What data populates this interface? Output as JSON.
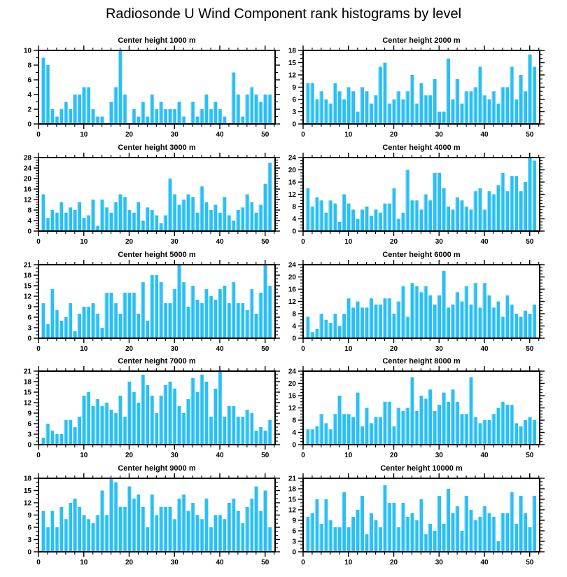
{
  "chart_data": {
    "type": "bar",
    "title": "Radiosonde U Wind Component rank histograms by level",
    "bar_color": "#2cbef4",
    "bar_edge_color": "#9ae4fb",
    "axis_color": "#000000",
    "bins": 51,
    "x_axis": {
      "ticks": [
        0,
        10,
        20,
        30,
        40,
        50
      ],
      "minor_step": 2,
      "range": [
        0,
        52.2
      ]
    },
    "panels": [
      {
        "title": "Center height 1000 m",
        "ylim": [
          0,
          10
        ],
        "ytick_step": 2,
        "values": [
          9,
          8,
          2,
          1,
          2,
          3,
          2,
          4,
          4,
          5,
          5,
          2,
          1,
          1,
          0,
          3,
          5,
          10,
          4,
          0,
          2,
          1,
          3,
          1,
          4,
          2,
          3,
          2,
          2,
          2,
          3,
          1,
          0,
          3,
          1,
          2,
          4,
          2,
          3,
          2,
          1,
          0,
          7,
          4,
          1,
          4,
          5,
          4,
          3,
          4,
          4
        ]
      },
      {
        "title": "Center height 2000 m",
        "ylim": [
          0,
          18
        ],
        "ytick_step": 3,
        "values": [
          10,
          10,
          6,
          8,
          6,
          5,
          10,
          8,
          6,
          9,
          8,
          3,
          9,
          8,
          5,
          7,
          14,
          15,
          5,
          6,
          8,
          6,
          8,
          12,
          5,
          10,
          7,
          7,
          11,
          3,
          3,
          16,
          6,
          11,
          5,
          8,
          8,
          9,
          14,
          7,
          6,
          8,
          5,
          9,
          9,
          14,
          6,
          12,
          8,
          17,
          14
        ]
      },
      {
        "title": "Center height 3000 m",
        "ylim": [
          0,
          28
        ],
        "ytick_step": 4,
        "values": [
          14,
          5,
          8,
          7,
          11,
          7,
          9,
          8,
          11,
          5,
          6,
          12,
          2,
          12,
          9,
          7,
          11,
          14,
          13,
          8,
          7,
          11,
          4,
          9,
          8,
          6,
          3,
          6,
          20,
          14,
          10,
          12,
          14,
          13,
          7,
          17,
          11,
          8,
          10,
          7,
          13,
          6,
          4,
          8,
          9,
          14,
          11,
          7,
          10,
          18,
          26
        ]
      },
      {
        "title": "Center height 4000 m",
        "ylim": [
          0,
          24
        ],
        "ytick_step": 4,
        "values": [
          14,
          8,
          11,
          10,
          6,
          10,
          9,
          3,
          12,
          9,
          7,
          4,
          7,
          8,
          5,
          7,
          6,
          9,
          9,
          14,
          4,
          6,
          20,
          10,
          10,
          7,
          12,
          10,
          19,
          19,
          14,
          8,
          7,
          11,
          10,
          8,
          7,
          13,
          14,
          7,
          13,
          12,
          15,
          19,
          13,
          18,
          18,
          13,
          16,
          24,
          23
        ]
      },
      {
        "title": "Center height 5000 m",
        "ylim": [
          0,
          21
        ],
        "ytick_step": 3,
        "values": [
          10,
          4,
          14,
          8,
          5,
          6,
          10,
          2,
          7,
          9,
          9,
          10,
          7,
          3,
          13,
          13,
          10,
          7,
          13,
          13,
          13,
          7,
          16,
          5,
          18,
          18,
          16,
          10,
          10,
          14,
          21,
          16,
          9,
          15,
          11,
          10,
          14,
          12,
          11,
          14,
          15,
          10,
          16,
          10,
          10,
          8,
          14,
          7,
          13,
          21,
          15
        ]
      },
      {
        "title": "Center height 6000 m",
        "ylim": [
          0,
          24
        ],
        "ytick_step": 4,
        "values": [
          7,
          2,
          3,
          8,
          6,
          5,
          8,
          4,
          8,
          13,
          10,
          12,
          10,
          10,
          13,
          11,
          11,
          13,
          13,
          8,
          12,
          17,
          7,
          18,
          17,
          15,
          17,
          14,
          11,
          14,
          22,
          10,
          11,
          15,
          12,
          17,
          11,
          18,
          10,
          18,
          14,
          10,
          12,
          7,
          14,
          11,
          8,
          7,
          9,
          8,
          11
        ]
      },
      {
        "title": "Center height 7000 m",
        "ylim": [
          0,
          21
        ],
        "ytick_step": 3,
        "values": [
          2,
          6,
          4,
          3,
          3,
          7,
          7,
          5,
          8,
          14,
          15,
          11,
          13,
          11,
          12,
          10,
          9,
          14,
          8,
          18,
          15,
          12,
          20,
          17,
          14,
          9,
          14,
          17,
          18,
          16,
          11,
          9,
          13,
          19,
          15,
          20,
          18,
          8,
          16,
          21,
          8,
          11,
          11,
          8,
          8,
          10,
          9,
          4,
          5,
          4,
          7
        ]
      },
      {
        "title": "Center height 8000 m",
        "ylim": [
          0,
          24
        ],
        "ytick_step": 4,
        "values": [
          5,
          5,
          6,
          10,
          7,
          5,
          10,
          16,
          10,
          10,
          9,
          17,
          6,
          12,
          7,
          9,
          9,
          14,
          14,
          6,
          12,
          11,
          12,
          22,
          11,
          16,
          15,
          18,
          11,
          13,
          17,
          14,
          18,
          14,
          10,
          10,
          22,
          9,
          7,
          8,
          8,
          10,
          12,
          14,
          13,
          13,
          7,
          6,
          8,
          9,
          8
        ]
      },
      {
        "title": "Center height 9000 m",
        "ylim": [
          0,
          18
        ],
        "ytick_step": 3,
        "values": [
          10,
          6,
          10,
          6,
          11,
          8,
          12,
          13,
          11,
          9,
          8,
          7,
          9,
          15,
          9,
          18,
          17,
          11,
          11,
          16,
          13,
          14,
          11,
          6,
          14,
          9,
          11,
          11,
          11,
          8,
          13,
          14,
          10,
          12,
          9,
          8,
          13,
          6,
          9,
          9,
          8,
          12,
          13,
          10,
          7,
          11,
          13,
          16,
          10,
          15,
          6
        ]
      },
      {
        "title": "Center height 10000 m",
        "ylim": [
          0,
          21
        ],
        "ytick_step": 3,
        "values": [
          10,
          11,
          15,
          8,
          15,
          9,
          7,
          7,
          17,
          7,
          10,
          12,
          16,
          5,
          11,
          9,
          7,
          19,
          14,
          14,
          7,
          14,
          10,
          11,
          9,
          15,
          5,
          8,
          6,
          16,
          8,
          18,
          11,
          13,
          6,
          16,
          12,
          9,
          10,
          13,
          11,
          10,
          3,
          11,
          11,
          17,
          8,
          16,
          11,
          7,
          16
        ]
      }
    ]
  }
}
